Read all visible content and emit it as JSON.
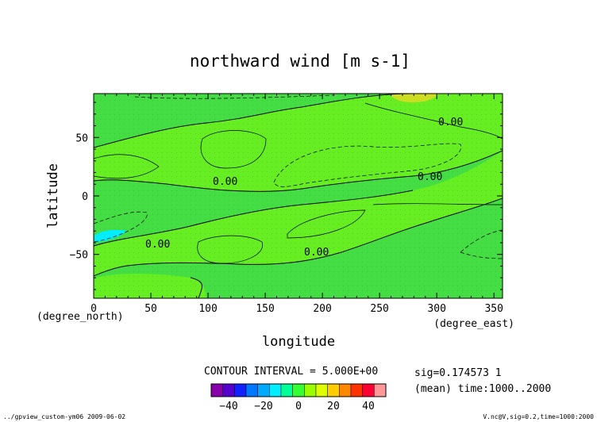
{
  "chart_data": {
    "type": "contour",
    "title": "northward wind [m s-1]",
    "xlabel": "longitude",
    "ylabel": "latitude",
    "x_unit": "(degree_east)",
    "y_unit": "(degree_north)",
    "xlim": [
      0,
      357.5
    ],
    "ylim": [
      -87.5,
      87.5
    ],
    "x_ticks": [
      0,
      50,
      100,
      150,
      200,
      250,
      300,
      350
    ],
    "y_ticks": [
      -50,
      0,
      50
    ],
    "contour_labels": [
      "0.00",
      "0.00",
      "0.00",
      "0.00",
      "0.00"
    ],
    "contour_interval_text": "CONTOUR INTERVAL = 5.000E+00",
    "info_lines": [
      "sig=0.174573 1",
      "(mean) time:1000..2000"
    ],
    "colorbar": {
      "tick_labels": [
        "−40",
        "−20",
        "0",
        "20",
        "40"
      ],
      "colors": [
        "#8800aa",
        "#5500cc",
        "#1122ff",
        "#0077ff",
        "#00aaff",
        "#00eeff",
        "#00ff99",
        "#33ff33",
        "#99ff00",
        "#ddff00",
        "#ffcc00",
        "#ff8800",
        "#ff3300",
        "#ff0033",
        "#ff9999"
      ]
    },
    "fill_colors": {
      "background": "#44dd44",
      "positive": "#66ee22",
      "strong_positive": "#ccdd22",
      "negative": "#00eeff"
    }
  },
  "footer": {
    "left": "../gpview_custom-ym06  2009-06-02",
    "right": "V.nc@V,sig=0.2,time=1000:2000"
  }
}
